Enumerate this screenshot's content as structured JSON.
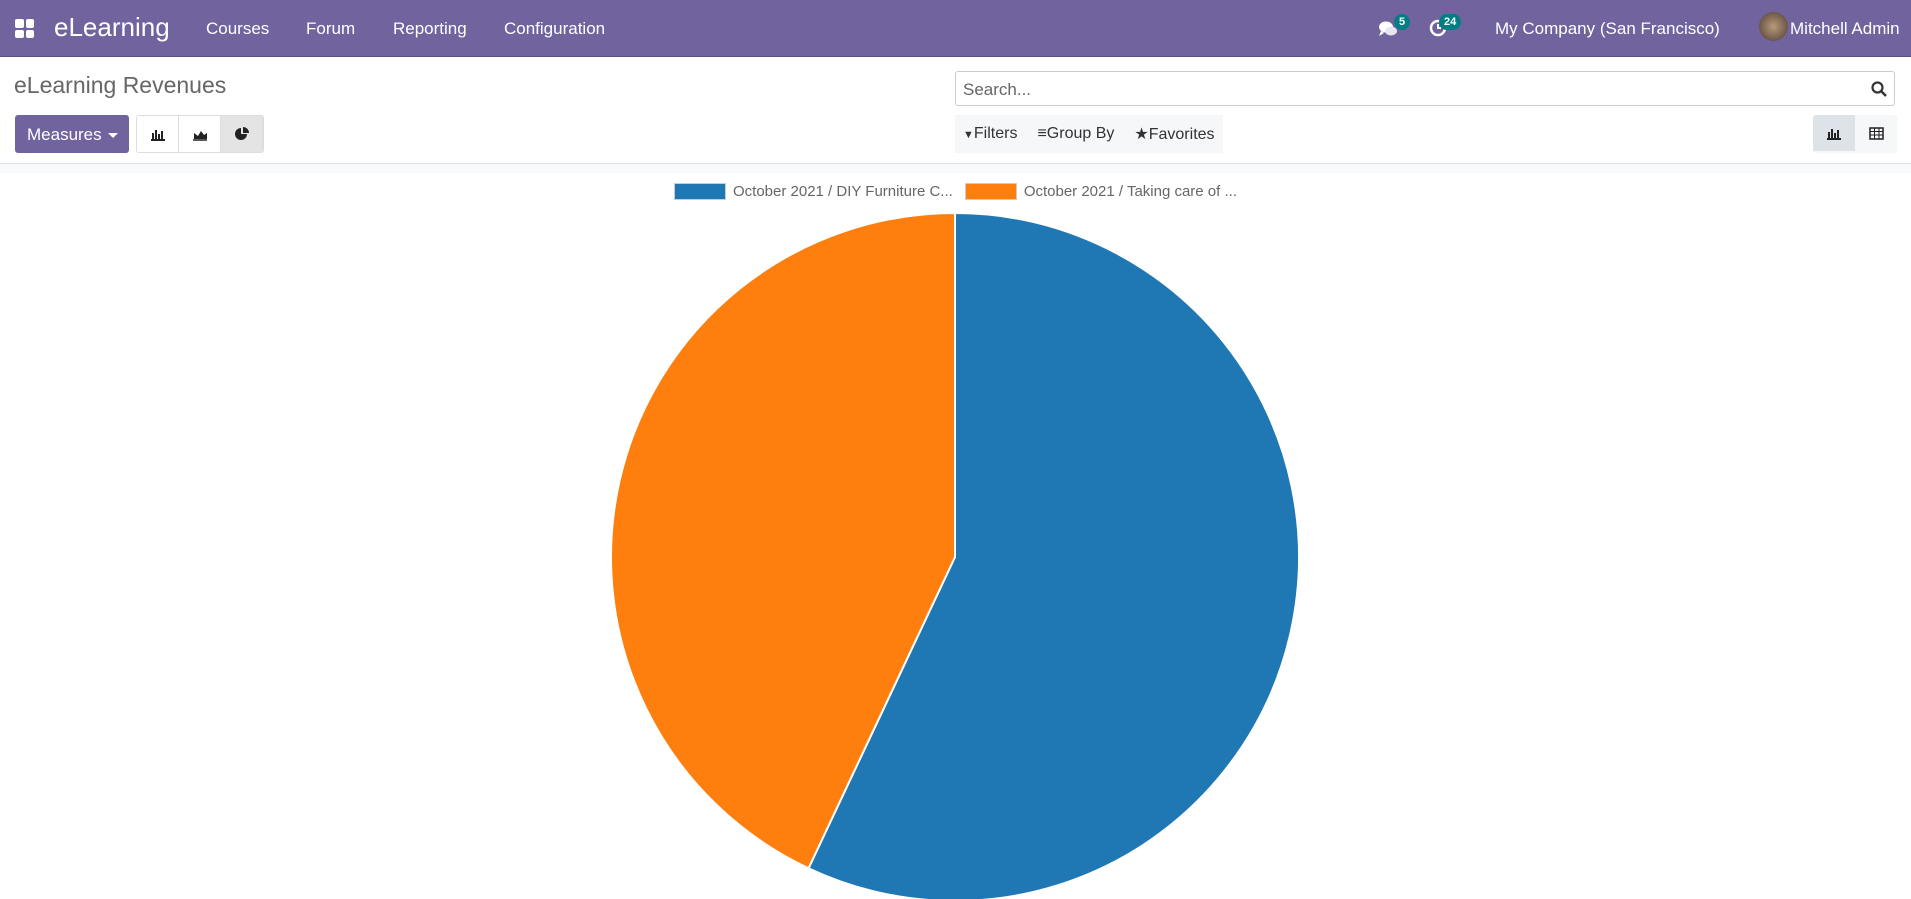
{
  "navbar": {
    "app_name": "eLearning",
    "menu": [
      "Courses",
      "Forum",
      "Reporting",
      "Configuration"
    ],
    "messages_count": "5",
    "activities_count": "24",
    "company": "My Company (San Francisco)",
    "user": "Mitchell Admin"
  },
  "page": {
    "title": "eLearning Revenues",
    "measures_label": "Measures"
  },
  "search": {
    "placeholder": "Search..."
  },
  "filters": {
    "filters_label": "Filters",
    "group_by_label": "Group By",
    "favorites_label": "Favorites"
  },
  "colors": {
    "navbar": "#71639e",
    "badge": "#017e84",
    "series1": "#1f77b4",
    "series2": "#ff7f0e"
  },
  "chart_data": {
    "type": "pie",
    "legend_position": "top",
    "labels": [
      "October 2021 / DIY Furniture C...",
      "October 2021 / Taking care of ..."
    ],
    "values": [
      57,
      43
    ]
  }
}
